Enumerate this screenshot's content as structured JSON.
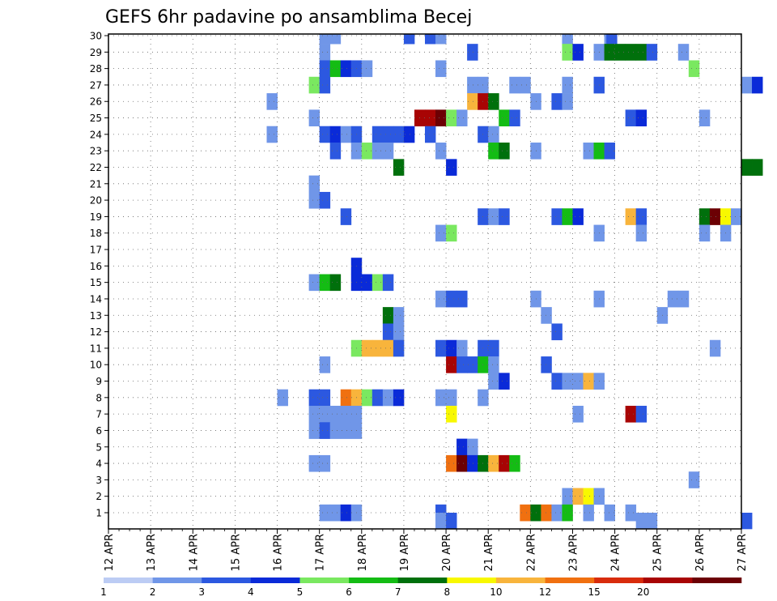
{
  "chart_data": {
    "type": "heatmap",
    "title": "GEFS 6hr padavine po ansamblima Becej",
    "xlabel": "",
    "ylabel": "",
    "x_tick_labels": [
      "12 APR",
      "13 APR",
      "14 APR",
      "15 APR",
      "16 APR",
      "17 APR",
      "18 APR",
      "19 APR",
      "20 APR",
      "21 APR",
      "22 APR",
      "23 APR",
      "24 APR",
      "25 APR",
      "26 APR",
      "27 APR"
    ],
    "y_range": [
      1,
      30
    ],
    "y_tick_labels": [
      "1",
      "2",
      "3",
      "4",
      "5",
      "6",
      "7",
      "8",
      "9",
      "10",
      "11",
      "12",
      "13",
      "14",
      "15",
      "16",
      "17",
      "18",
      "19",
      "20",
      "21",
      "22",
      "23",
      "24",
      "25",
      "26",
      "27",
      "28",
      "29",
      "30"
    ],
    "time_steps_per_day": 4,
    "grid": true,
    "colorbar": {
      "levels": [
        "1",
        "2",
        "3",
        "4",
        "5",
        "6",
        "7",
        "8",
        "10",
        "12",
        "15",
        "20"
      ],
      "colors": [
        "#bcccf4",
        "#7096e8",
        "#2c58e0",
        "#0a2ad8",
        "#7ae860",
        "#14bc14",
        "#00700c",
        "#f8f800",
        "#f8b43c",
        "#f07010",
        "#d82c0c",
        "#a80404",
        "#6c0004"
      ]
    },
    "cells": [
      [
        17.0,
        30,
        1
      ],
      [
        17.25,
        30,
        1
      ],
      [
        19.0,
        30,
        2
      ],
      [
        19.5,
        30,
        2
      ],
      [
        19.75,
        30,
        1
      ],
      [
        22.75,
        30,
        1
      ],
      [
        23.75,
        30,
        1
      ],
      [
        23.8,
        30,
        2
      ],
      [
        17.0,
        29,
        1
      ],
      [
        20.5,
        29,
        2
      ],
      [
        22.75,
        29,
        4
      ],
      [
        23.0,
        29,
        3
      ],
      [
        23.5,
        29,
        1
      ],
      [
        23.75,
        29,
        6
      ],
      [
        24.0,
        29,
        6
      ],
      [
        24.25,
        29,
        6
      ],
      [
        24.5,
        29,
        6
      ],
      [
        24.75,
        29,
        2
      ],
      [
        25.5,
        29,
        1
      ],
      [
        17.0,
        28,
        2
      ],
      [
        17.25,
        28,
        5
      ],
      [
        17.5,
        28,
        3
      ],
      [
        17.75,
        28,
        2
      ],
      [
        18.0,
        28,
        1
      ],
      [
        19.75,
        28,
        1
      ],
      [
        25.75,
        28,
        4
      ],
      [
        16.75,
        27,
        4
      ],
      [
        17.0,
        27,
        2
      ],
      [
        20.5,
        27,
        1
      ],
      [
        20.75,
        27,
        1
      ],
      [
        21.5,
        27,
        1
      ],
      [
        21.75,
        27,
        1
      ],
      [
        22.75,
        27,
        1
      ],
      [
        23.5,
        27,
        2
      ],
      [
        27.0,
        27,
        1
      ],
      [
        27.25,
        27,
        3
      ],
      [
        15.75,
        26,
        1
      ],
      [
        20.5,
        26,
        8
      ],
      [
        20.75,
        26,
        11
      ],
      [
        21.0,
        26,
        6
      ],
      [
        22.0,
        26,
        1
      ],
      [
        22.5,
        26,
        2
      ],
      [
        22.75,
        26,
        1
      ],
      [
        16.75,
        25,
        1
      ],
      [
        19.25,
        25,
        11
      ],
      [
        19.5,
        25,
        11
      ],
      [
        19.75,
        25,
        12
      ],
      [
        20.0,
        25,
        4
      ],
      [
        20.25,
        25,
        1
      ],
      [
        21.25,
        25,
        5
      ],
      [
        21.5,
        25,
        2
      ],
      [
        24.25,
        25,
        2
      ],
      [
        24.5,
        25,
        3
      ],
      [
        26.0,
        25,
        1
      ],
      [
        15.75,
        24,
        1
      ],
      [
        17.0,
        24,
        2
      ],
      [
        17.25,
        24,
        3
      ],
      [
        17.5,
        24,
        1
      ],
      [
        17.75,
        24,
        2
      ],
      [
        18.25,
        24,
        2
      ],
      [
        18.5,
        24,
        2
      ],
      [
        18.75,
        24,
        2
      ],
      [
        19.0,
        24,
        3
      ],
      [
        19.5,
        24,
        2
      ],
      [
        20.75,
        24,
        2
      ],
      [
        21.0,
        24,
        1
      ],
      [
        17.25,
        23,
        2
      ],
      [
        17.75,
        23,
        1
      ],
      [
        18.0,
        23,
        4
      ],
      [
        18.25,
        23,
        1
      ],
      [
        18.5,
        23,
        1
      ],
      [
        19.75,
        23,
        1
      ],
      [
        21.0,
        23,
        5
      ],
      [
        21.25,
        23,
        6
      ],
      [
        22.0,
        23,
        1
      ],
      [
        23.25,
        23,
        1
      ],
      [
        23.5,
        23,
        5
      ],
      [
        23.75,
        23,
        2
      ],
      [
        18.75,
        22,
        6
      ],
      [
        20.0,
        22,
        3
      ],
      [
        27.0,
        22,
        6
      ],
      [
        27.25,
        22,
        6
      ],
      [
        16.75,
        21,
        1
      ],
      [
        16.75,
        20,
        1
      ],
      [
        17.0,
        20,
        2
      ],
      [
        17.5,
        19,
        2
      ],
      [
        20.75,
        19,
        2
      ],
      [
        21.0,
        19,
        1
      ],
      [
        21.25,
        19,
        2
      ],
      [
        22.5,
        19,
        2
      ],
      [
        22.75,
        19,
        5
      ],
      [
        23.0,
        19,
        3
      ],
      [
        24.25,
        19,
        8
      ],
      [
        24.5,
        19,
        2
      ],
      [
        26.0,
        19,
        6
      ],
      [
        26.25,
        19,
        12
      ],
      [
        26.5,
        19,
        7
      ],
      [
        26.75,
        19,
        1
      ],
      [
        19.75,
        18,
        1
      ],
      [
        20.0,
        18,
        4
      ],
      [
        23.5,
        18,
        1
      ],
      [
        24.5,
        18,
        1
      ],
      [
        26.0,
        18,
        1
      ],
      [
        26.5,
        18,
        1
      ],
      [
        17.75,
        16,
        3
      ],
      [
        16.75,
        15,
        1
      ],
      [
        17.0,
        15,
        5
      ],
      [
        17.25,
        15,
        6
      ],
      [
        17.75,
        15,
        3
      ],
      [
        18.0,
        15,
        3
      ],
      [
        18.25,
        15,
        4
      ],
      [
        18.5,
        15,
        2
      ],
      [
        19.75,
        14,
        1
      ],
      [
        20.0,
        14,
        2
      ],
      [
        20.25,
        14,
        2
      ],
      [
        22.0,
        14,
        1
      ],
      [
        23.5,
        14,
        1
      ],
      [
        25.25,
        14,
        1
      ],
      [
        25.5,
        14,
        1
      ],
      [
        18.5,
        13,
        6
      ],
      [
        18.75,
        13,
        1
      ],
      [
        22.25,
        13,
        1
      ],
      [
        25.0,
        13,
        1
      ],
      [
        18.5,
        12,
        2
      ],
      [
        18.75,
        12,
        1
      ],
      [
        22.5,
        12,
        2
      ],
      [
        17.75,
        11,
        4
      ],
      [
        18.0,
        11,
        8
      ],
      [
        18.25,
        11,
        8
      ],
      [
        18.5,
        11,
        8
      ],
      [
        18.75,
        11,
        2
      ],
      [
        19.75,
        11,
        2
      ],
      [
        20.0,
        11,
        3
      ],
      [
        20.25,
        11,
        1
      ],
      [
        20.75,
        11,
        2
      ],
      [
        21.0,
        11,
        2
      ],
      [
        26.25,
        11,
        1
      ],
      [
        17.0,
        10,
        1
      ],
      [
        20.0,
        10,
        11
      ],
      [
        20.25,
        10,
        2
      ],
      [
        20.5,
        10,
        2
      ],
      [
        20.75,
        10,
        5
      ],
      [
        21.0,
        10,
        1
      ],
      [
        22.25,
        10,
        2
      ],
      [
        21.0,
        9,
        1
      ],
      [
        21.25,
        9,
        3
      ],
      [
        22.5,
        9,
        2
      ],
      [
        22.75,
        9,
        1
      ],
      [
        23.0,
        9,
        1
      ],
      [
        23.25,
        9,
        8
      ],
      [
        23.5,
        9,
        1
      ],
      [
        16.0,
        8,
        1
      ],
      [
        16.75,
        8,
        2
      ],
      [
        17.0,
        8,
        2
      ],
      [
        17.5,
        8,
        9
      ],
      [
        17.75,
        8,
        8
      ],
      [
        18.0,
        8,
        4
      ],
      [
        18.25,
        8,
        2
      ],
      [
        18.5,
        8,
        1
      ],
      [
        18.75,
        8,
        3
      ],
      [
        19.75,
        8,
        1
      ],
      [
        20.0,
        8,
        1
      ],
      [
        20.75,
        8,
        1
      ],
      [
        16.75,
        7,
        1
      ],
      [
        17.0,
        7,
        1
      ],
      [
        17.25,
        7,
        1
      ],
      [
        17.5,
        7,
        1
      ],
      [
        17.75,
        7,
        1
      ],
      [
        20.0,
        7,
        7
      ],
      [
        23.0,
        7,
        1
      ],
      [
        24.25,
        7,
        11
      ],
      [
        24.5,
        7,
        2
      ],
      [
        16.75,
        6,
        1
      ],
      [
        17.0,
        6,
        2
      ],
      [
        17.25,
        6,
        1
      ],
      [
        17.5,
        6,
        1
      ],
      [
        17.75,
        6,
        1
      ],
      [
        20.25,
        5,
        3
      ],
      [
        20.5,
        5,
        1
      ],
      [
        16.75,
        4,
        1
      ],
      [
        17.0,
        4,
        1
      ],
      [
        20.0,
        4,
        9
      ],
      [
        20.25,
        4,
        12
      ],
      [
        20.5,
        4,
        3
      ],
      [
        20.75,
        4,
        6
      ],
      [
        21.0,
        4,
        8
      ],
      [
        21.25,
        4,
        11
      ],
      [
        21.5,
        4,
        5
      ],
      [
        25.75,
        3,
        1
      ],
      [
        22.75,
        2,
        1
      ],
      [
        23.0,
        2,
        8
      ],
      [
        23.25,
        2,
        7
      ],
      [
        23.5,
        2,
        1
      ],
      [
        17.0,
        1,
        1
      ],
      [
        17.25,
        1,
        1
      ],
      [
        17.5,
        1,
        3
      ],
      [
        17.75,
        1,
        1
      ],
      [
        19.75,
        1,
        2
      ],
      [
        21.75,
        1,
        9
      ],
      [
        22.0,
        1,
        6
      ],
      [
        22.25,
        1,
        9
      ],
      [
        22.5,
        1,
        1
      ],
      [
        22.75,
        1,
        5
      ],
      [
        23.25,
        1,
        1
      ],
      [
        23.75,
        1,
        1
      ],
      [
        24.25,
        1,
        1
      ],
      [
        19.75,
        0.5,
        1
      ],
      [
        20.0,
        0.5,
        2
      ],
      [
        24.5,
        0.5,
        1
      ],
      [
        24.75,
        0.5,
        1
      ],
      [
        27.0,
        0.5,
        2
      ]
    ]
  }
}
